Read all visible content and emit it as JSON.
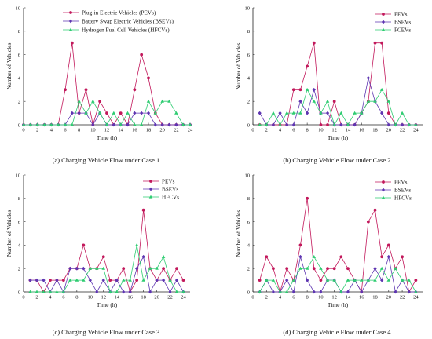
{
  "colors": {
    "PEV": "#c2185b",
    "BSEV": "#5e35b1",
    "FCEV": "#2ecc71"
  },
  "chart_data": [
    {
      "type": "line",
      "caption": "(a) Charging Vehicle Flow under Case 1.",
      "xlabel": "Time (h)",
      "ylabel": "Number of Vehicles",
      "xlim": [
        0,
        24
      ],
      "ylim": [
        0,
        10
      ],
      "xticks": [
        0,
        2,
        4,
        6,
        8,
        10,
        12,
        14,
        16,
        18,
        20,
        22,
        24
      ],
      "yticks": [
        0,
        2,
        4,
        6,
        8,
        10
      ],
      "x": [
        0,
        1,
        2,
        3,
        4,
        5,
        6,
        7,
        8,
        9,
        10,
        11,
        12,
        13,
        14,
        15,
        16,
        17,
        18,
        19,
        20,
        21,
        22,
        23,
        24
      ],
      "series": [
        {
          "name": "Plug-in Electric Vehicles (PEVs)",
          "color_key": "PEV",
          "marker": "circle",
          "values": [
            0,
            0,
            0,
            0,
            0,
            0,
            3,
            7,
            1,
            3,
            0,
            2,
            1,
            0,
            1,
            0,
            3,
            6,
            4,
            1,
            0,
            0,
            0,
            0,
            0
          ]
        },
        {
          "name": "Battery Swap Electric Vehicles (BSEVs)",
          "color_key": "BSEV",
          "marker": "diamond",
          "values": [
            0,
            0,
            0,
            0,
            0,
            0,
            0,
            1,
            1,
            1,
            0,
            1,
            0,
            0,
            0,
            0,
            1,
            1,
            1,
            0,
            0,
            0,
            0,
            0,
            0
          ]
        },
        {
          "name": "Hydrogen Fuel Cell Vehicles (HFCVs)",
          "color_key": "FCEV",
          "marker": "triangle",
          "values": [
            0,
            0,
            0,
            0,
            0,
            0,
            0,
            0,
            2,
            1,
            2,
            1,
            0,
            1,
            0,
            1,
            0,
            0,
            2,
            1,
            2,
            2,
            1,
            0,
            0
          ]
        }
      ]
    },
    {
      "type": "line",
      "caption": "(b) Charging Vehicle Flow under Case 2.",
      "xlabel": "Time (h)",
      "ylabel": "Number of Vehicles",
      "xlim": [
        0,
        25
      ],
      "ylim": [
        0,
        10
      ],
      "xticks": [
        0,
        2,
        4,
        6,
        8,
        10,
        12,
        14,
        16,
        18,
        20,
        22,
        24
      ],
      "yticks": [
        0,
        2,
        4,
        6,
        8,
        10
      ],
      "x": [
        1,
        2,
        3,
        4,
        5,
        6,
        7,
        8,
        9,
        10,
        11,
        12,
        13,
        14,
        15,
        16,
        17,
        18,
        19,
        20,
        21,
        22,
        23,
        24
      ],
      "series": [
        {
          "name": "PEVs",
          "color_key": "PEV",
          "marker": "circle",
          "values": [
            0,
            0,
            0,
            0,
            0,
            3,
            3,
            5,
            7,
            0,
            0,
            2,
            0,
            0,
            0,
            1,
            2,
            7,
            7,
            1,
            0,
            0,
            0,
            0
          ]
        },
        {
          "name": "BSEVs",
          "color_key": "BSEV",
          "marker": "diamond",
          "values": [
            1,
            0,
            0,
            1,
            0,
            0,
            2,
            1,
            3,
            1,
            1,
            0,
            0,
            0,
            0,
            1,
            4,
            2,
            1,
            0,
            0,
            0,
            0,
            0
          ]
        },
        {
          "name": "FCEVs",
          "color_key": "FCEV",
          "marker": "triangle",
          "values": [
            0,
            0,
            1,
            0,
            1,
            1,
            1,
            3,
            2,
            1,
            2,
            0,
            1,
            0,
            1,
            1,
            2,
            2,
            3,
            2,
            0,
            1,
            0,
            0
          ]
        }
      ]
    },
    {
      "type": "line",
      "caption": "(c) Charging Vehicle Flow under Case 3.",
      "xlabel": "Time (h)",
      "ylabel": "Number of Vehicles",
      "xlim": [
        0,
        25
      ],
      "ylim": [
        0,
        10
      ],
      "xticks": [
        0,
        2,
        4,
        6,
        8,
        10,
        12,
        14,
        16,
        18,
        20,
        22,
        24
      ],
      "yticks": [
        0,
        2,
        4,
        6,
        8,
        10
      ],
      "x": [
        1,
        2,
        3,
        4,
        5,
        6,
        7,
        8,
        9,
        10,
        11,
        12,
        13,
        14,
        15,
        16,
        17,
        18,
        19,
        20,
        21,
        22,
        23,
        24
      ],
      "series": [
        {
          "name": "PEVs",
          "color_key": "PEV",
          "marker": "circle",
          "values": [
            1,
            1,
            0,
            1,
            1,
            1,
            2,
            2,
            4,
            2,
            2,
            3,
            1,
            1,
            2,
            0,
            1,
            7,
            2,
            1,
            2,
            1,
            2,
            1
          ]
        },
        {
          "name": "BSEVs",
          "color_key": "BSEV",
          "marker": "diamond",
          "values": [
            1,
            1,
            1,
            0,
            1,
            0,
            2,
            2,
            2,
            1,
            0,
            1,
            0,
            1,
            0,
            0,
            2,
            3,
            0,
            1,
            1,
            0,
            1,
            0
          ]
        },
        {
          "name": "HFCVs",
          "color_key": "FCEV",
          "marker": "triangle",
          "values": [
            0,
            0,
            0,
            0,
            0,
            0,
            1,
            1,
            1,
            2,
            2,
            2,
            0,
            0,
            1,
            1,
            4,
            1,
            2,
            2,
            3,
            1,
            0,
            0
          ]
        }
      ]
    },
    {
      "type": "line",
      "caption": "(d) Charging Vehicle Flow under Case 4.",
      "xlabel": "Time (h)",
      "ylabel": "Number of Vehicles",
      "xlim": [
        0,
        25
      ],
      "ylim": [
        0,
        10
      ],
      "xticks": [
        0,
        2,
        4,
        6,
        8,
        10,
        12,
        14,
        16,
        18,
        20,
        22,
        24
      ],
      "yticks": [
        0,
        2,
        4,
        6,
        8,
        10
      ],
      "x": [
        1,
        2,
        3,
        4,
        5,
        6,
        7,
        8,
        9,
        10,
        11,
        12,
        13,
        14,
        15,
        16,
        17,
        18,
        19,
        20,
        21,
        22,
        23,
        24
      ],
      "series": [
        {
          "name": "PEVs",
          "color_key": "PEV",
          "marker": "circle",
          "values": [
            1,
            3,
            2,
            0,
            2,
            1,
            4,
            8,
            2,
            1,
            2,
            2,
            3,
            2,
            1,
            0,
            6,
            7,
            3,
            4,
            2,
            3,
            0,
            1
          ]
        },
        {
          "name": "BSEVs",
          "color_key": "BSEV",
          "marker": "diamond",
          "values": [
            0,
            1,
            0,
            0,
            1,
            0,
            3,
            1,
            0,
            0,
            1,
            1,
            0,
            0,
            1,
            0,
            1,
            2,
            1,
            3,
            0,
            1,
            0,
            0
          ]
        },
        {
          "name": "HFCVs",
          "color_key": "FCEV",
          "marker": "triangle",
          "values": [
            0,
            1,
            1,
            0,
            0,
            1,
            2,
            2,
            3,
            2,
            1,
            1,
            0,
            1,
            1,
            1,
            1,
            1,
            2,
            1,
            2,
            1,
            1,
            0
          ]
        }
      ]
    }
  ]
}
